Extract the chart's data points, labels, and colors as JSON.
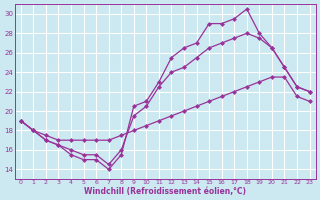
{
  "xlabel": "Windchill (Refroidissement éolien,°C)",
  "background_color": "#cce8f0",
  "grid_color": "#ffffff",
  "line_color": "#993399",
  "xlim": [
    -0.5,
    23.5
  ],
  "ylim": [
    13,
    31
  ],
  "yticks": [
    14,
    16,
    18,
    20,
    22,
    24,
    26,
    28,
    30
  ],
  "xticks": [
    0,
    1,
    2,
    3,
    4,
    5,
    6,
    7,
    8,
    9,
    10,
    11,
    12,
    13,
    14,
    15,
    16,
    17,
    18,
    19,
    20,
    21,
    22,
    23
  ],
  "series": [
    {
      "x": [
        0,
        1,
        2,
        3,
        4,
        5,
        6,
        7,
        8,
        9,
        10,
        11,
        12,
        13,
        14,
        15,
        16,
        17,
        18,
        19,
        20,
        21,
        22,
        23
      ],
      "y": [
        19.0,
        18.0,
        17.0,
        16.5,
        15.5,
        15.0,
        15.0,
        14.0,
        15.5,
        20.5,
        21.0,
        23.0,
        25.5,
        26.5,
        27.0,
        29.0,
        29.0,
        29.5,
        30.5,
        28.0,
        26.5,
        24.5,
        22.5,
        22.0
      ]
    },
    {
      "x": [
        0,
        1,
        2,
        3,
        4,
        5,
        6,
        7,
        8,
        9,
        10,
        11,
        12,
        13,
        14,
        15,
        16,
        17,
        18,
        19,
        20,
        21,
        22,
        23
      ],
      "y": [
        19.0,
        18.0,
        17.0,
        16.5,
        16.0,
        15.5,
        15.5,
        14.5,
        16.0,
        19.5,
        20.5,
        22.5,
        24.0,
        24.5,
        25.5,
        26.5,
        27.0,
        27.5,
        28.0,
        27.5,
        26.5,
        24.5,
        22.5,
        22.0
      ]
    },
    {
      "x": [
        0,
        1,
        2,
        3,
        4,
        5,
        6,
        7,
        8,
        9,
        10,
        11,
        12,
        13,
        14,
        15,
        16,
        17,
        18,
        19,
        20,
        21,
        22,
        23
      ],
      "y": [
        19.0,
        18.0,
        17.5,
        17.0,
        17.0,
        17.0,
        17.0,
        17.0,
        17.5,
        18.0,
        18.5,
        19.0,
        19.5,
        20.0,
        20.5,
        21.0,
        21.5,
        22.0,
        22.5,
        23.0,
        23.5,
        23.5,
        21.5,
        21.0
      ]
    }
  ]
}
